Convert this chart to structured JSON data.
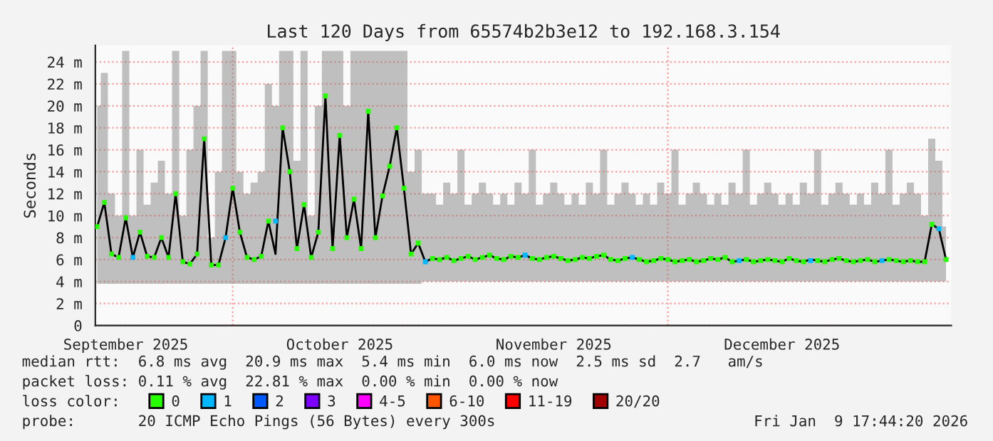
{
  "chart_data": {
    "type": "line",
    "title": "Last 120 Days from 65574b2b3e12 to 192.168.3.154",
    "ylabel": "Seconds",
    "legend_title": "loss color:",
    "x": [
      "2025-09-12",
      "2025-09-13",
      "2025-09-14",
      "2025-09-15",
      "2025-09-16",
      "2025-09-17",
      "2025-09-18",
      "2025-09-19",
      "2025-09-20",
      "2025-09-21",
      "2025-09-22",
      "2025-09-23",
      "2025-09-24",
      "2025-09-25",
      "2025-09-26",
      "2025-09-27",
      "2025-09-28",
      "2025-09-29",
      "2025-09-30",
      "2025-10-01",
      "2025-10-02",
      "2025-10-03",
      "2025-10-04",
      "2025-10-05",
      "2025-10-06",
      "2025-10-07",
      "2025-10-08",
      "2025-10-09",
      "2025-10-10",
      "2025-10-11",
      "2025-10-12",
      "2025-10-13",
      "2025-10-14",
      "2025-10-15",
      "2025-10-16",
      "2025-10-17",
      "2025-10-18",
      "2025-10-19",
      "2025-10-20",
      "2025-10-21",
      "2025-10-22",
      "2025-10-23",
      "2025-10-24",
      "2025-10-25",
      "2025-10-26",
      "2025-10-27",
      "2025-10-28",
      "2025-10-29",
      "2025-10-30",
      "2025-10-31",
      "2025-11-01",
      "2025-11-02",
      "2025-11-03",
      "2025-11-04",
      "2025-11-05",
      "2025-11-06",
      "2025-11-07",
      "2025-11-08",
      "2025-11-09",
      "2025-11-10",
      "2025-11-11",
      "2025-11-12",
      "2025-11-13",
      "2025-11-14",
      "2025-11-15",
      "2025-11-16",
      "2025-11-17",
      "2025-11-18",
      "2025-11-19",
      "2025-11-20",
      "2025-11-21",
      "2025-11-22",
      "2025-11-23",
      "2025-11-24",
      "2025-11-25",
      "2025-11-26",
      "2025-11-27",
      "2025-11-28",
      "2025-11-29",
      "2025-11-30",
      "2025-12-01",
      "2025-12-02",
      "2025-12-03",
      "2025-12-04",
      "2025-12-05",
      "2025-12-06",
      "2025-12-07",
      "2025-12-08",
      "2025-12-09",
      "2025-12-10",
      "2025-12-11",
      "2025-12-12",
      "2025-12-13",
      "2025-12-14",
      "2025-12-15",
      "2025-12-16",
      "2025-12-17",
      "2025-12-18",
      "2025-12-19",
      "2025-12-20",
      "2025-12-21",
      "2025-12-22",
      "2025-12-23",
      "2025-12-24",
      "2025-12-25",
      "2025-12-26",
      "2025-12-27",
      "2025-12-28",
      "2025-12-29",
      "2025-12-30",
      "2025-12-31",
      "2026-01-01",
      "2026-01-02",
      "2026-01-03",
      "2026-01-04",
      "2026-01-05",
      "2026-01-06",
      "2026-01-07",
      "2026-01-08",
      "2026-01-09"
    ],
    "series": [
      {
        "color": "#000000",
        "values": [
          9.0,
          11.2,
          6.5,
          6.2,
          9.8,
          6.2,
          8.5,
          6.3,
          6.2,
          8.0,
          6.2,
          12.0,
          5.8,
          5.6,
          6.5,
          17.0,
          5.5,
          5.5,
          8.0,
          12.5,
          8.5,
          6.2,
          6.0,
          6.3,
          9.5,
          6.5,
          18.0,
          14.0,
          7.0,
          11.0,
          6.2,
          8.5,
          20.9,
          7.0,
          17.3,
          8.0,
          11.5,
          7.0,
          19.5,
          8.0,
          11.8,
          14.5,
          18.0,
          12.5,
          6.5,
          7.5,
          5.8,
          6.1,
          6.0,
          6.2,
          5.9,
          6.1,
          6.3,
          6.0,
          6.2,
          6.4,
          6.1,
          6.0,
          6.3,
          6.2,
          6.4,
          6.1,
          6.0,
          6.2,
          6.3,
          6.1,
          5.9,
          6.0,
          6.2,
          6.1,
          6.3,
          6.4,
          6.0,
          5.9,
          6.1,
          6.2,
          6.0,
          5.8,
          5.9,
          6.1,
          6.0,
          5.8,
          5.9,
          6.0,
          5.8,
          5.9,
          6.1,
          6.0,
          6.2,
          5.8,
          5.9,
          6.0,
          5.8,
          5.9,
          6.0,
          5.9,
          5.8,
          6.1,
          5.9,
          5.8,
          6.0,
          5.9,
          5.8,
          6.0,
          6.1,
          5.9,
          5.8,
          5.9,
          6.0,
          5.8,
          5.9,
          6.0,
          5.9,
          5.8,
          5.9,
          5.8,
          5.8,
          9.2,
          8.8,
          6.0
        ],
        "lower": [
          3.8,
          3.8,
          3.8,
          3.8,
          3.8,
          3.8,
          3.8,
          3.8,
          3.8,
          3.8,
          3.8,
          3.8,
          3.8,
          3.8,
          3.8,
          3.8,
          3.8,
          3.8,
          3.8,
          3.8,
          3.8,
          3.8,
          3.8,
          3.8,
          3.8,
          3.8,
          3.8,
          3.8,
          3.8,
          3.8,
          3.8,
          3.8,
          3.8,
          3.8,
          3.8,
          3.8,
          3.8,
          3.8,
          3.8,
          3.8,
          3.8,
          3.8,
          3.8,
          3.8,
          3.8,
          3.8,
          4.0,
          4.0,
          4.0,
          4.0,
          4.0,
          4.0,
          4.0,
          4.0,
          4.0,
          4.0,
          4.0,
          4.0,
          4.0,
          4.0,
          4.0,
          4.0,
          4.0,
          4.0,
          4.0,
          4.0,
          4.0,
          4.0,
          4.0,
          4.0,
          4.0,
          4.0,
          4.0,
          4.0,
          4.0,
          4.0,
          4.0,
          4.0,
          4.0,
          4.0,
          4.0,
          4.0,
          4.0,
          4.0,
          4.0,
          4.0,
          4.0,
          4.0,
          4.0,
          4.0,
          4.0,
          4.0,
          4.0,
          4.0,
          4.0,
          4.0,
          4.0,
          4.0,
          4.0,
          4.0,
          4.0,
          4.0,
          4.0,
          4.0,
          4.0,
          4.0,
          4.0,
          4.0,
          4.0,
          4.0,
          4.0,
          4.0,
          4.0,
          4.0,
          4.0,
          4.0,
          4.0,
          4.0,
          4.0,
          4.0
        ],
        "upper": [
          20,
          23,
          12,
          10,
          25,
          10,
          16,
          11,
          13,
          15,
          12,
          25,
          10,
          16,
          20,
          25,
          8,
          14,
          25,
          25,
          14,
          12,
          13,
          14,
          22,
          20,
          25,
          25,
          15,
          25,
          10,
          20,
          25,
          25,
          25,
          20,
          25,
          25,
          25,
          25,
          25,
          25,
          25,
          25,
          14,
          16,
          12,
          12,
          11,
          13,
          12,
          16,
          11,
          12,
          13,
          12,
          11,
          12,
          11,
          13,
          12,
          16,
          11,
          12,
          13,
          12,
          11,
          12,
          11,
          13,
          12,
          16,
          11,
          12,
          13,
          12,
          11,
          12,
          11,
          13,
          12,
          16,
          11,
          12,
          13,
          12,
          11,
          12,
          11,
          13,
          12,
          16,
          11,
          12,
          13,
          12,
          11,
          12,
          11,
          13,
          12,
          16,
          11,
          12,
          13,
          12,
          11,
          12,
          11,
          13,
          12,
          16,
          11,
          12,
          13,
          12,
          10,
          17,
          15,
          9
        ]
      },
      {
        "type": "scatter",
        "name": "0",
        "color": "#26ff00",
        "marker": "square",
        "values": [
          9.0,
          11.2,
          6.5,
          6.2,
          9.8,
          null,
          8.5,
          6.3,
          6.2,
          8.0,
          6.2,
          12.0,
          5.8,
          5.6,
          6.5,
          17.0,
          5.5,
          5.5,
          null,
          12.5,
          8.5,
          6.2,
          6.0,
          6.3,
          9.5,
          null,
          18.0,
          14.0,
          7.0,
          11.0,
          6.2,
          8.5,
          20.9,
          7.0,
          17.3,
          8.0,
          11.5,
          7.0,
          19.5,
          8.0,
          11.8,
          14.5,
          18.0,
          12.5,
          6.5,
          7.5,
          null,
          6.1,
          6.0,
          6.2,
          5.9,
          6.1,
          6.3,
          6.0,
          6.2,
          6.4,
          6.1,
          6.0,
          6.3,
          6.2,
          null,
          6.1,
          6.0,
          6.2,
          6.3,
          6.1,
          5.9,
          6.0,
          6.2,
          6.1,
          6.3,
          6.4,
          6.0,
          5.9,
          6.1,
          null,
          6.0,
          5.8,
          5.9,
          6.1,
          6.0,
          5.8,
          5.9,
          6.0,
          5.8,
          5.9,
          6.1,
          6.0,
          6.2,
          5.8,
          null,
          6.0,
          5.8,
          5.9,
          6.0,
          5.9,
          5.8,
          6.1,
          5.9,
          5.8,
          null,
          5.9,
          5.8,
          6.0,
          6.1,
          5.9,
          5.8,
          5.9,
          6.0,
          5.8,
          null,
          6.0,
          5.9,
          5.8,
          5.9,
          5.8,
          5.8,
          9.2,
          null,
          6.0
        ]
      },
      {
        "type": "scatter",
        "name": "1",
        "color": "#00b8ff",
        "marker": "square",
        "x": [
          "2025-09-17",
          "2025-09-30",
          "2025-10-07",
          "2025-10-28",
          "2025-11-11",
          "2025-11-26",
          "2025-12-11",
          "2025-12-21",
          "2025-12-31",
          "2026-01-08"
        ],
        "values": [
          6.2,
          8.0,
          9.5,
          5.8,
          6.4,
          6.2,
          5.9,
          5.9,
          5.9,
          8.8
        ]
      },
      {
        "type": "scatter",
        "name": "2",
        "color": "#0059ff",
        "marker": "square",
        "values": [
          null,
          null,
          null,
          null,
          null,
          null,
          null,
          null,
          null,
          null,
          null,
          null,
          null,
          null,
          null,
          null,
          null,
          null,
          null,
          null,
          null,
          null,
          null,
          null,
          null,
          null,
          null,
          null,
          null,
          null,
          null,
          null,
          null,
          null,
          null,
          null,
          null,
          null,
          null,
          null,
          null,
          null,
          null,
          null,
          null,
          null,
          null,
          null,
          null,
          null,
          null,
          null,
          null,
          null,
          null,
          null,
          null,
          null,
          null,
          null,
          null,
          null,
          null,
          null,
          null,
          null,
          null,
          null,
          null,
          null,
          null,
          null,
          null,
          null,
          null,
          null,
          null,
          null,
          null,
          null,
          null,
          null,
          null,
          null,
          null,
          null,
          null,
          null,
          null,
          null,
          null,
          null,
          null,
          null,
          null,
          null,
          null,
          null,
          null,
          null,
          null,
          null,
          null,
          null,
          null,
          null,
          null,
          null,
          null,
          null,
          null,
          null,
          null,
          null,
          null,
          null,
          null,
          null,
          null,
          null
        ]
      },
      {
        "type": "scatter",
        "name": "3",
        "color": "#7e00ff",
        "marker": "square",
        "values": [
          null,
          null,
          null,
          null,
          null,
          null,
          null,
          null,
          null,
          null,
          null,
          null,
          null,
          null,
          null,
          null,
          null,
          null,
          null,
          null,
          null,
          null,
          null,
          null,
          null,
          null,
          null,
          null,
          null,
          null,
          null,
          null,
          null,
          null,
          null,
          null,
          null,
          null,
          null,
          null,
          null,
          null,
          null,
          null,
          null,
          null,
          null,
          null,
          null,
          null,
          null,
          null,
          null,
          null,
          null,
          null,
          null,
          null,
          null,
          null,
          null,
          null,
          null,
          null,
          null,
          null,
          null,
          null,
          null,
          null,
          null,
          null,
          null,
          null,
          null,
          null,
          null,
          null,
          null,
          null,
          null,
          null,
          null,
          null,
          null,
          null,
          null,
          null,
          null,
          null,
          null,
          null,
          null,
          null,
          null,
          null,
          null,
          null,
          null,
          null,
          null,
          null,
          null,
          null,
          null,
          null,
          null,
          null,
          null,
          null,
          null,
          null,
          null,
          null,
          null,
          null,
          null,
          null,
          null,
          null
        ]
      },
      {
        "type": "scatter",
        "name": "4-5",
        "color": "#ff00ff",
        "marker": "square",
        "values": [
          null,
          null,
          null,
          null,
          null,
          null,
          null,
          null,
          null,
          null,
          null,
          null,
          null,
          null,
          null,
          null,
          null,
          null,
          null,
          null,
          null,
          null,
          null,
          null,
          null,
          null,
          null,
          null,
          null,
          null,
          null,
          null,
          null,
          null,
          null,
          null,
          null,
          null,
          null,
          null,
          null,
          null,
          null,
          null,
          null,
          null,
          null,
          null,
          null,
          null,
          null,
          null,
          null,
          null,
          null,
          null,
          null,
          null,
          null,
          null,
          null,
          null,
          null,
          null,
          null,
          null,
          null,
          null,
          null,
          null,
          null,
          null,
          null,
          null,
          null,
          null,
          null,
          null,
          null,
          null,
          null,
          null,
          null,
          null,
          null,
          null,
          null,
          null,
          null,
          null,
          null,
          null,
          null,
          null,
          null,
          null,
          null,
          null,
          null,
          null,
          null,
          null,
          null,
          null,
          null,
          null,
          null,
          null,
          null,
          null,
          null,
          null,
          null,
          null,
          null,
          null,
          null,
          null,
          null,
          null
        ]
      },
      {
        "type": "scatter",
        "name": "6-10",
        "color": "#ff5500",
        "marker": "square",
        "values": [
          null,
          null,
          null,
          null,
          null,
          null,
          null,
          null,
          null,
          null,
          null,
          null,
          null,
          null,
          null,
          null,
          null,
          null,
          null,
          null,
          null,
          null,
          null,
          null,
          null,
          null,
          null,
          null,
          null,
          null,
          null,
          null,
          null,
          null,
          null,
          null,
          null,
          null,
          null,
          null,
          null,
          null,
          null,
          null,
          null,
          null,
          null,
          null,
          null,
          null,
          null,
          null,
          null,
          null,
          null,
          null,
          null,
          null,
          null,
          null,
          null,
          null,
          null,
          null,
          null,
          null,
          null,
          null,
          null,
          null,
          null,
          null,
          null,
          null,
          null,
          null,
          null,
          null,
          null,
          null,
          null,
          null,
          null,
          null,
          null,
          null,
          null,
          null,
          null,
          null,
          null,
          null,
          null,
          null,
          null,
          null,
          null,
          null,
          null,
          null,
          null,
          null,
          null,
          null,
          null,
          null,
          null,
          null,
          null,
          null,
          null,
          null,
          null,
          null,
          null,
          null,
          null,
          null,
          null,
          null
        ]
      },
      {
        "type": "scatter",
        "name": "11-19",
        "color": "#ff0000",
        "marker": "square",
        "values": [
          null,
          null,
          null,
          null,
          null,
          null,
          null,
          null,
          null,
          null,
          null,
          null,
          null,
          null,
          null,
          null,
          null,
          null,
          null,
          null,
          null,
          null,
          null,
          null,
          null,
          null,
          null,
          null,
          null,
          null,
          null,
          null,
          null,
          null,
          null,
          null,
          null,
          null,
          null,
          null,
          null,
          null,
          null,
          null,
          null,
          null,
          null,
          null,
          null,
          null,
          null,
          null,
          null,
          null,
          null,
          null,
          null,
          null,
          null,
          null,
          null,
          null,
          null,
          null,
          null,
          null,
          null,
          null,
          null,
          null,
          null,
          null,
          null,
          null,
          null,
          null,
          null,
          null,
          null,
          null,
          null,
          null,
          null,
          null,
          null,
          null,
          null,
          null,
          null,
          null,
          null,
          null,
          null,
          null,
          null,
          null,
          null,
          null,
          null,
          null,
          null,
          null,
          null,
          null,
          null,
          null,
          null,
          null,
          null,
          null,
          null,
          null,
          null,
          null,
          null,
          null,
          null,
          null,
          null,
          null
        ]
      },
      {
        "type": "scatter",
        "name": "20/20",
        "color": "#a10000",
        "marker": "square",
        "values": [
          null,
          null,
          null,
          null,
          null,
          null,
          null,
          null,
          null,
          null,
          null,
          null,
          null,
          null,
          null,
          null,
          null,
          null,
          null,
          null,
          null,
          null,
          null,
          null,
          null,
          null,
          null,
          null,
          null,
          null,
          null,
          null,
          null,
          null,
          null,
          null,
          null,
          null,
          null,
          null,
          null,
          null,
          null,
          null,
          null,
          null,
          null,
          null,
          null,
          null,
          null,
          null,
          null,
          null,
          null,
          null,
          null,
          null,
          null,
          null,
          null,
          null,
          null,
          null,
          null,
          null,
          null,
          null,
          null,
          null,
          null,
          null,
          null,
          null,
          null,
          null,
          null,
          null,
          null,
          null,
          null,
          null,
          null,
          null,
          null,
          null,
          null,
          null,
          null,
          null,
          null,
          null,
          null,
          null,
          null,
          null,
          null,
          null,
          null,
          null,
          null,
          null,
          null,
          null,
          null,
          null,
          null,
          null,
          null,
          null,
          null,
          null,
          null,
          null,
          null,
          null,
          null,
          null,
          null,
          null
        ]
      }
    ],
    "xlim": [
      "2025-09-11T17:44",
      "2026-01-09T17:44"
    ],
    "xticks": [
      {
        "value": "2025-09-16",
        "label": "September 2025"
      },
      {
        "value": "2025-10-16",
        "label": "October 2025"
      },
      {
        "value": "2025-11-15",
        "label": "November 2025"
      },
      {
        "value": "2025-12-17",
        "label": "December 2025"
      }
    ],
    "ylim": [
      0,
      25.5
    ],
    "yticks": [
      0,
      {
        "value": 2,
        "label": "2 m"
      },
      {
        "value": 4,
        "label": "4 m"
      },
      {
        "value": 6,
        "label": "6 m"
      },
      {
        "value": 8,
        "label": "8 m"
      },
      {
        "value": 10,
        "label": "10 m"
      },
      {
        "value": 12,
        "label": "12 m"
      },
      {
        "value": 14,
        "label": "14 m"
      },
      {
        "value": 16,
        "label": "16 m"
      },
      {
        "value": 18,
        "label": "18 m"
      },
      {
        "value": 20,
        "label": "20 m"
      },
      {
        "value": 22,
        "label": "22 m"
      },
      {
        "value": 24,
        "label": "24 m"
      }
    ],
    "ref_lines": [
      {
        "axis": "x",
        "value": "2025-10-01",
        "color": "#ff9a9a",
        "line_style": "dotted"
      },
      {
        "axis": "x",
        "value": "2025-12-01",
        "color": "#ff9a9a",
        "line_style": "dotted"
      }
    ],
    "grid": "y",
    "legend": "bottom",
    "annotations": [
      "median rtt:  6.8 ms avg  20.9 ms max  5.4 ms min  6.0 ms now  2.5 ms sd  2.7   am/s",
      "packet loss: 0.11 % avg  22.81 % max  0.00 % min  0.00 % now",
      "probe:       20 ICMP Echo Pings (56 Bytes) every 300s",
      "Fri Jan  9 17:44:20 2026"
    ]
  }
}
